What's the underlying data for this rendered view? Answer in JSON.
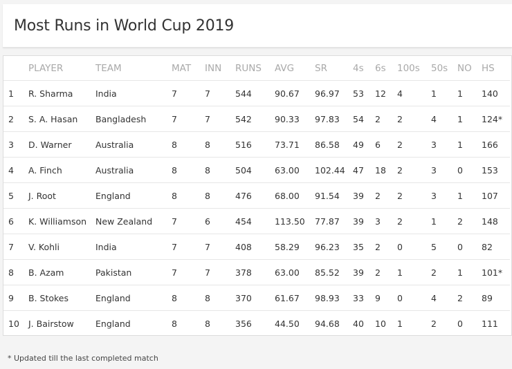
{
  "title": "Most Runs in World Cup 2019",
  "columns": [
    "",
    "PLAYER",
    "TEAM",
    "MAT",
    "INN",
    "RUNS",
    "AVG",
    "SR",
    "4s",
    "6s",
    "100s",
    "50s",
    "NO",
    "HS"
  ],
  "rows": [
    [
      "1",
      "R. Sharma",
      "India",
      "7",
      "7",
      "544",
      "90.67",
      "96.97",
      "53",
      "12",
      "4",
      "1",
      "1",
      "140"
    ],
    [
      "2",
      "S. A. Hasan",
      "Bangladesh",
      "7",
      "7",
      "542",
      "90.33",
      "97.83",
      "54",
      "2",
      "2",
      "4",
      "1",
      "124*"
    ],
    [
      "3",
      "D. Warner",
      "Australia",
      "8",
      "8",
      "516",
      "73.71",
      "86.58",
      "49",
      "6",
      "2",
      "3",
      "1",
      "166"
    ],
    [
      "4",
      "A. Finch",
      "Australia",
      "8",
      "8",
      "504",
      "63.00",
      "102.44",
      "47",
      "18",
      "2",
      "3",
      "0",
      "153"
    ],
    [
      "5",
      "J. Root",
      "England",
      "8",
      "8",
      "476",
      "68.00",
      "91.54",
      "39",
      "2",
      "2",
      "3",
      "1",
      "107"
    ],
    [
      "6",
      "K. Williamson",
      "New Zealand",
      "7",
      "6",
      "454",
      "113.50",
      "77.87",
      "39",
      "3",
      "2",
      "1",
      "2",
      "148"
    ],
    [
      "7",
      "V. Kohli",
      "India",
      "7",
      "7",
      "408",
      "58.29",
      "96.23",
      "35",
      "2",
      "0",
      "5",
      "0",
      "82"
    ],
    [
      "8",
      "B. Azam",
      "Pakistan",
      "7",
      "7",
      "378",
      "63.00",
      "85.52",
      "39",
      "2",
      "1",
      "2",
      "1",
      "101*"
    ],
    [
      "9",
      "B. Stokes",
      "England",
      "8",
      "8",
      "370",
      "61.67",
      "98.93",
      "33",
      "9",
      "0",
      "4",
      "2",
      "89"
    ],
    [
      "10",
      "J. Bairstow",
      "England",
      "8",
      "8",
      "356",
      "44.50",
      "94.68",
      "40",
      "10",
      "1",
      "2",
      "0",
      "111"
    ]
  ],
  "footnote": "* Updated till the last completed match"
}
